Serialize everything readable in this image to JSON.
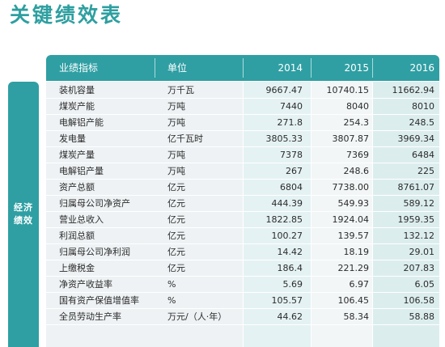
{
  "title": "关键绩效表",
  "header": {
    "indicator": "业绩指标",
    "unit": "单位",
    "years": [
      "2014",
      "2015",
      "2016"
    ]
  },
  "category": "经济\n绩效",
  "rows": [
    {
      "name": "装机容量",
      "unit": "万千瓦",
      "values": [
        "9667.47",
        "10740.15",
        "11662.94"
      ]
    },
    {
      "name": "煤炭产能",
      "unit": "万吨",
      "values": [
        "7440",
        "8040",
        "8010"
      ]
    },
    {
      "name": "电解铝产能",
      "unit": "万吨",
      "values": [
        "271.8",
        "254.3",
        "248.5"
      ]
    },
    {
      "name": "发电量",
      "unit": "亿千瓦时",
      "values": [
        "3805.33",
        "3807.87",
        "3969.34"
      ]
    },
    {
      "name": "煤炭产量",
      "unit": "万吨",
      "values": [
        "7378",
        "7369",
        "6484"
      ]
    },
    {
      "name": "电解铝产量",
      "unit": "万吨",
      "values": [
        "267",
        "248.6",
        "225"
      ]
    },
    {
      "name": "资产总额",
      "unit": "亿元",
      "values": [
        "6804",
        "7738.00",
        "8761.07"
      ]
    },
    {
      "name": "归属母公司净资产",
      "unit": "亿元",
      "values": [
        "444.39",
        "549.93",
        "589.12"
      ]
    },
    {
      "name": "营业总收入",
      "unit": "亿元",
      "values": [
        "1822.85",
        "1924.04",
        "1959.35"
      ]
    },
    {
      "name": "利润总额",
      "unit": "亿元",
      "values": [
        "100.27",
        "139.57",
        "132.12"
      ]
    },
    {
      "name": "归属母公司净利润",
      "unit": "亿元",
      "values": [
        "14.42",
        "18.19",
        "29.01"
      ]
    },
    {
      "name": "上缴税金",
      "unit": "亿元",
      "values": [
        "186.4",
        "221.29",
        "207.83"
      ]
    },
    {
      "name": "净资产收益率",
      "unit": "%",
      "values": [
        "5.69",
        "6.97",
        "6.05"
      ]
    },
    {
      "name": "国有资产保值增值率",
      "unit": "%",
      "values": [
        "105.57",
        "106.45",
        "106.58"
      ]
    },
    {
      "name": "全员劳动生产率",
      "unit": "万元/（人·年）",
      "values": [
        "44.62",
        "58.34",
        "58.88"
      ]
    }
  ]
}
